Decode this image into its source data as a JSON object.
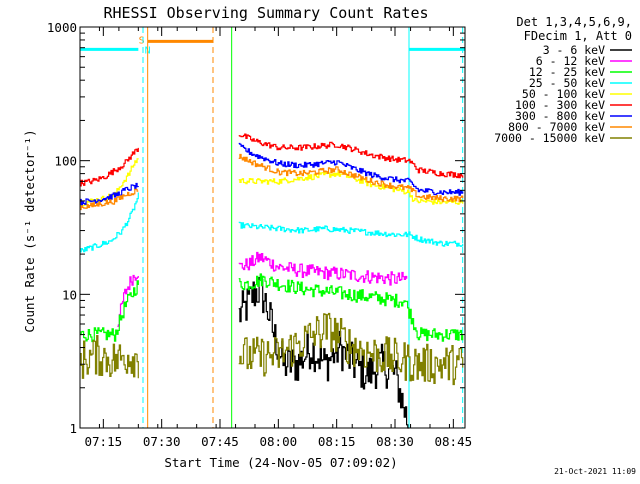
{
  "chart_data": {
    "type": "line",
    "title": "RHESSI Observing Summary Count Rates",
    "xlabel": "Start Time (24-Nov-05 07:09:02)",
    "ylabel": "Count Rate (s⁻¹ detector⁻¹)",
    "yscale": "log",
    "ylim": [
      1,
      1000
    ],
    "xlim": [
      7.15,
      8.8
    ],
    "x_ticks": [
      {
        "value": 7.25,
        "label": "07:15"
      },
      {
        "value": 7.5,
        "label": "07:30"
      },
      {
        "value": 7.75,
        "label": "07:45"
      },
      {
        "value": 8.0,
        "label": "08:00"
      },
      {
        "value": 8.25,
        "label": "08:15"
      },
      {
        "value": 8.5,
        "label": "08:30"
      },
      {
        "value": 8.75,
        "label": "08:45"
      }
    ],
    "y_ticks": [
      {
        "value": 1,
        "label": "1"
      },
      {
        "value": 10,
        "label": "10"
      },
      {
        "value": 100,
        "label": "100"
      },
      {
        "value": 1000,
        "label": "1000"
      }
    ],
    "legend_header": [
      "Det 1,3,4,5,6,9,",
      "FDecim 1, Att 0"
    ],
    "legend_position": "right",
    "timestamp": "21-Oct-2021 11:09",
    "grid": false,
    "flags": [
      {
        "kind": "saa",
        "label": "S",
        "color": "#ff8800",
        "x_start": 7.44,
        "x_end": 7.72,
        "y": 780
      },
      {
        "kind": "night",
        "label": "N",
        "color": "#00ffff",
        "x_start": 7.15,
        "x_end": 7.4,
        "y": 680
      },
      {
        "kind": "night",
        "label": "",
        "color": "#00ffff",
        "x_start": 8.56,
        "x_end": 8.8,
        "y": 680
      }
    ],
    "vlines": [
      {
        "x": 7.15,
        "color": "#00ffff",
        "style": "solid"
      },
      {
        "x": 7.42,
        "color": "#00ffff",
        "style": "dashed"
      },
      {
        "x": 7.44,
        "color": "#ff8800",
        "style": "solid"
      },
      {
        "x": 7.72,
        "color": "#ff8800",
        "style": "dashed"
      },
      {
        "x": 7.8,
        "color": "#00ff00",
        "style": "solid"
      },
      {
        "x": 8.56,
        "color": "#00ffff",
        "style": "solid"
      },
      {
        "x": 8.79,
        "color": "#00ffff",
        "style": "dashed"
      }
    ],
    "series": [
      {
        "name": "3 - 6 keV",
        "color": "#000000",
        "segments": [
          {
            "x": [
              7.83,
              7.86,
              7.89,
              7.92,
              7.95,
              7.98,
              8.02,
              8.08,
              8.14,
              8.2,
              8.26,
              8.32,
              8.38,
              8.44,
              8.5,
              8.56
            ],
            "y": [
              7,
              8,
              10,
              11,
              8,
              5,
              3,
              3,
              4,
              3,
              4,
              3,
              2.5,
              3,
              2.5,
              1
            ]
          }
        ]
      },
      {
        "name": "6 - 12 keV",
        "color": "#ff00ff",
        "segments": [
          {
            "x": [
              7.31,
              7.34,
              7.37,
              7.4
            ],
            "y": [
              6,
              10,
              13,
              15
            ]
          },
          {
            "x": [
              7.83,
              7.88,
              7.92,
              8.0,
              8.1,
              8.2,
              8.3,
              8.4,
              8.5,
              8.55
            ],
            "y": [
              16,
              17,
              19,
              16,
              15,
              14.5,
              14,
              13.5,
              13,
              13
            ]
          }
        ]
      },
      {
        "name": "12 - 25 keV",
        "color": "#00ff00",
        "segments": [
          {
            "x": [
              7.15,
              7.2,
              7.25,
              7.3,
              7.34,
              7.37,
              7.4
            ],
            "y": [
              5,
              5,
              5,
              5,
              8,
              10,
              12
            ]
          },
          {
            "x": [
              7.83,
              7.88,
              7.93,
              8.0,
              8.1,
              8.2,
              8.3,
              8.4,
              8.5,
              8.54,
              8.6,
              8.7,
              8.79
            ],
            "y": [
              12,
              12,
              13,
              12,
              11,
              10.5,
              10,
              9.5,
              9,
              9,
              5,
              5,
              5
            ]
          }
        ]
      },
      {
        "name": "25 - 50 keV",
        "color": "#00ffff",
        "segments": [
          {
            "x": [
              7.15,
              7.22,
              7.28,
              7.33,
              7.37,
              7.4
            ],
            "y": [
              21,
              23,
              25,
              30,
              40,
              55
            ]
          },
          {
            "x": [
              7.83,
              7.9,
              8.0,
              8.1,
              8.2,
              8.3,
              8.4,
              8.5,
              8.56,
              8.6,
              8.7,
              8.79
            ],
            "y": [
              33,
              32,
              31,
              30,
              31,
              30,
              29,
              28,
              28,
              26,
              24,
              24
            ]
          }
        ]
      },
      {
        "name": "50 - 100 keV",
        "color": "#ffff00",
        "segments": [
          {
            "x": [
              7.15,
              7.2,
              7.25,
              7.3,
              7.33,
              7.36,
              7.38,
              7.4
            ],
            "y": [
              48,
              50,
              52,
              56,
              68,
              80,
              95,
              105
            ]
          },
          {
            "x": [
              7.83,
              7.9,
              8.0,
              8.1,
              8.2,
              8.25,
              8.3,
              8.4,
              8.5,
              8.56,
              8.58,
              8.7,
              8.79
            ],
            "y": [
              71,
              70,
              70,
              74,
              78,
              80,
              76,
              66,
              61,
              58,
              50,
              49,
              49
            ]
          }
        ]
      },
      {
        "name": "100 - 300 keV",
        "color": "#ff0000",
        "segments": [
          {
            "x": [
              7.15,
              7.2,
              7.25,
              7.3,
              7.34,
              7.37,
              7.4
            ],
            "y": [
              68,
              70,
              75,
              85,
              95,
              110,
              125
            ]
          },
          {
            "x": [
              7.83,
              7.9,
              8.0,
              8.1,
              8.2,
              8.25,
              8.3,
              8.4,
              8.5,
              8.56,
              8.6,
              8.7,
              8.79
            ],
            "y": [
              158,
              140,
              125,
              125,
              130,
              132,
              125,
              110,
              102,
              100,
              85,
              80,
              78
            ]
          }
        ]
      },
      {
        "name": "300 - 800 keV",
        "color": "#0000ff",
        "segments": [
          {
            "x": [
              7.15,
              7.2,
              7.25,
              7.3,
              7.34,
              7.37,
              7.4
            ],
            "y": [
              49,
              50,
              52,
              55,
              60,
              63,
              65
            ]
          },
          {
            "x": [
              7.83,
              7.9,
              8.0,
              8.1,
              8.2,
              8.25,
              8.3,
              8.4,
              8.5,
              8.56,
              8.6,
              8.7,
              8.79
            ],
            "y": [
              128,
              110,
              95,
              92,
              96,
              98,
              90,
              78,
              72,
              70,
              60,
              58,
              58
            ]
          }
        ]
      },
      {
        "name": "800 - 7000 keV",
        "color": "#ff8800",
        "segments": [
          {
            "x": [
              7.15,
              7.2,
              7.25,
              7.3,
              7.34,
              7.37,
              7.4
            ],
            "y": [
              45,
              46,
              48,
              50,
              55,
              58,
              60
            ]
          },
          {
            "x": [
              7.83,
              7.9,
              8.0,
              8.1,
              8.2,
              8.25,
              8.3,
              8.4,
              8.5,
              8.56,
              8.6,
              8.7,
              8.79
            ],
            "y": [
              108,
              95,
              82,
              80,
              84,
              86,
              80,
              70,
              64,
              62,
              54,
              52,
              52
            ]
          }
        ]
      },
      {
        "name": "7000 - 15000 keV",
        "color": "#808000",
        "segments": [
          {
            "x": [
              7.15,
              7.22,
              7.3,
              7.36,
              7.4
            ],
            "y": [
              3.2,
              3.5,
              3.2,
              3.5,
              3.3
            ]
          },
          {
            "x": [
              7.83,
              7.9,
              8.0,
              8.08,
              8.15,
              8.2,
              8.25,
              8.3,
              8.4,
              8.5,
              8.6,
              8.7,
              8.79
            ],
            "y": [
              3.5,
              3.4,
              3.5,
              4.2,
              5,
              5.5,
              5,
              4.2,
              3.6,
              3.3,
              3,
              3,
              3
            ]
          }
        ]
      }
    ]
  }
}
